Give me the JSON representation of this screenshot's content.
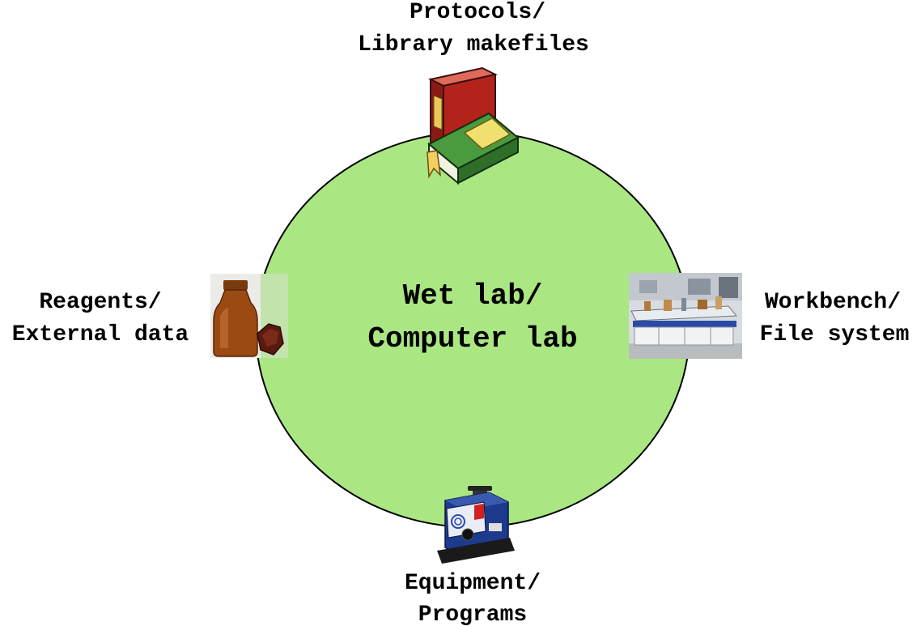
{
  "circle": {
    "fill": "#aae782",
    "stroke": "#000000"
  },
  "center": {
    "line1": "Wet lab/",
    "line2": "Computer lab"
  },
  "nodes": {
    "top": {
      "line1": "Protocols/",
      "line2": "Library makefiles",
      "icon": "books-icon"
    },
    "left": {
      "line1": "Reagents/",
      "line2": "External data",
      "icon": "reagent-bottle-icon"
    },
    "right": {
      "line1": "Workbench/",
      "line2": "File system",
      "icon": "lab-workbench-icon"
    },
    "bottom": {
      "line1": "Equipment/",
      "line2": "Programs",
      "icon": "vortex-mixer-icon"
    }
  }
}
